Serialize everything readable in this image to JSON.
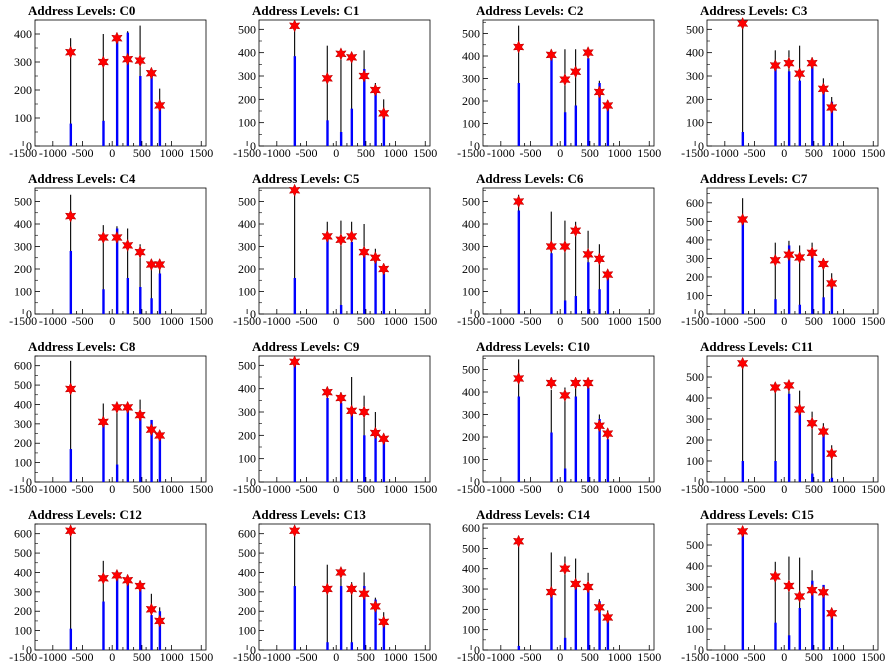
{
  "x_ticks": [
    -1500,
    -1000,
    -500,
    0,
    500,
    1000,
    1500
  ],
  "style": {
    "hist_color": "#000000",
    "fill_color": "#0000ff",
    "marker_color": "#ff0000",
    "axis_color": "#000000"
  },
  "chart_data": [
    {
      "type": "bar",
      "title": "Address Levels: C0",
      "ylim": [
        0,
        450
      ],
      "yticks": [
        0,
        100,
        200,
        300,
        400
      ],
      "x": [
        -700,
        -150,
        80,
        260,
        470,
        660,
        800
      ],
      "totals": [
        385,
        400,
        385,
        410,
        430,
        270,
        205
      ],
      "blue": [
        80,
        90,
        380,
        405,
        250,
        250,
        140
      ],
      "markers": [
        335,
        300,
        385,
        310,
        305,
        260,
        145
      ]
    },
    {
      "type": "bar",
      "title": "Address Levels: C1",
      "ylim": [
        0,
        540
      ],
      "yticks": [
        0,
        100,
        200,
        300,
        400,
        500
      ],
      "x": [
        -700,
        -150,
        80,
        260,
        470,
        660,
        800
      ],
      "totals": [
        520,
        430,
        410,
        385,
        410,
        270,
        200
      ],
      "blue": [
        385,
        110,
        60,
        160,
        330,
        250,
        145
      ],
      "markers": [
        515,
        290,
        395,
        380,
        300,
        240,
        140
      ]
    },
    {
      "type": "bar",
      "title": "Address Levels: C2",
      "ylim": [
        0,
        560
      ],
      "yticks": [
        0,
        100,
        200,
        300,
        400,
        500
      ],
      "x": [
        -700,
        -150,
        80,
        260,
        470,
        660,
        800
      ],
      "totals": [
        535,
        410,
        430,
        430,
        400,
        290,
        195
      ],
      "blue": [
        280,
        390,
        150,
        180,
        390,
        280,
        185
      ],
      "markers": [
        440,
        405,
        295,
        330,
        415,
        240,
        180
      ]
    },
    {
      "type": "bar",
      "title": "Address Levels: C3",
      "ylim": [
        0,
        540
      ],
      "yticks": [
        0,
        100,
        200,
        300,
        400,
        500
      ],
      "x": [
        -700,
        -150,
        80,
        260,
        470,
        660,
        800
      ],
      "totals": [
        525,
        410,
        410,
        430,
        380,
        290,
        210
      ],
      "blue": [
        60,
        350,
        320,
        280,
        360,
        250,
        190
      ],
      "markers": [
        525,
        345,
        355,
        310,
        355,
        245,
        165
      ]
    },
    {
      "type": "bar",
      "title": "Address Levels: C4",
      "ylim": [
        0,
        560
      ],
      "yticks": [
        0,
        100,
        200,
        300,
        400,
        500
      ],
      "x": [
        -700,
        -150,
        80,
        260,
        470,
        660,
        800
      ],
      "totals": [
        530,
        395,
        390,
        380,
        310,
        230,
        220
      ],
      "blue": [
        280,
        110,
        380,
        160,
        120,
        70,
        180
      ],
      "markers": [
        435,
        340,
        340,
        305,
        275,
        220,
        220
      ]
    },
    {
      "type": "bar",
      "title": "Address Levels: C5",
      "ylim": [
        0,
        560
      ],
      "yticks": [
        0,
        100,
        200,
        300,
        400,
        500
      ],
      "x": [
        -700,
        -150,
        80,
        260,
        470,
        660,
        800
      ],
      "totals": [
        560,
        410,
        415,
        410,
        400,
        290,
        200
      ],
      "blue": [
        160,
        330,
        40,
        320,
        270,
        260,
        180
      ],
      "markers": [
        550,
        345,
        330,
        345,
        275,
        250,
        200
      ]
    },
    {
      "type": "bar",
      "title": "Address Levels: C6",
      "ylim": [
        0,
        560
      ],
      "yticks": [
        0,
        100,
        200,
        300,
        400,
        500
      ],
      "x": [
        -700,
        -150,
        80,
        260,
        470,
        660,
        800
      ],
      "totals": [
        530,
        455,
        415,
        410,
        370,
        310,
        190
      ],
      "blue": [
        460,
        270,
        60,
        80,
        230,
        110,
        180
      ],
      "markers": [
        500,
        300,
        300,
        370,
        265,
        245,
        175
      ]
    },
    {
      "type": "bar",
      "title": "Address Levels: C7",
      "ylim": [
        0,
        680
      ],
      "yticks": [
        0,
        100,
        200,
        300,
        400,
        500,
        600
      ],
      "x": [
        -700,
        -150,
        80,
        260,
        470,
        660,
        800
      ],
      "totals": [
        625,
        385,
        395,
        370,
        385,
        300,
        220
      ],
      "blue": [
        515,
        80,
        370,
        50,
        330,
        90,
        150
      ],
      "markers": [
        510,
        290,
        320,
        305,
        330,
        270,
        165
      ]
    },
    {
      "type": "bar",
      "title": "Address Levels: C8",
      "ylim": [
        0,
        650
      ],
      "yticks": [
        0,
        100,
        200,
        300,
        400,
        500,
        600
      ],
      "x": [
        -700,
        -150,
        80,
        260,
        470,
        660,
        800
      ],
      "totals": [
        625,
        405,
        405,
        395,
        425,
        320,
        250
      ],
      "blue": [
        170,
        300,
        90,
        370,
        350,
        320,
        230
      ],
      "markers": [
        480,
        310,
        385,
        385,
        345,
        270,
        240
      ]
    },
    {
      "type": "bar",
      "title": "Address Levels: C9",
      "ylim": [
        0,
        540
      ],
      "yticks": [
        0,
        100,
        200,
        300,
        400,
        500
      ],
      "x": [
        -700,
        -150,
        80,
        260,
        470,
        660,
        800
      ],
      "totals": [
        520,
        395,
        385,
        450,
        370,
        300,
        195
      ],
      "blue": [
        510,
        360,
        340,
        310,
        200,
        210,
        170
      ],
      "markers": [
        515,
        385,
        360,
        305,
        300,
        210,
        185
      ]
    },
    {
      "type": "bar",
      "title": "Address Levels: C10",
      "ylim": [
        0,
        560
      ],
      "yticks": [
        0,
        100,
        200,
        300,
        400,
        500
      ],
      "x": [
        -700,
        -150,
        80,
        260,
        470,
        660,
        800
      ],
      "totals": [
        545,
        410,
        420,
        460,
        400,
        300,
        200
      ],
      "blue": [
        380,
        220,
        60,
        380,
        420,
        280,
        190
      ],
      "markers": [
        460,
        440,
        385,
        440,
        440,
        250,
        215
      ]
    },
    {
      "type": "bar",
      "title": "Address Levels: C11",
      "ylim": [
        0,
        600
      ],
      "yticks": [
        0,
        100,
        200,
        300,
        400,
        500
      ],
      "x": [
        -700,
        -150,
        80,
        260,
        470,
        660,
        800
      ],
      "totals": [
        570,
        430,
        445,
        435,
        335,
        280,
        175
      ],
      "blue": [
        100,
        100,
        420,
        330,
        40,
        260,
        20
      ],
      "markers": [
        565,
        450,
        460,
        345,
        280,
        240,
        135
      ]
    },
    {
      "type": "bar",
      "title": "Address Levels: C12",
      "ylim": [
        0,
        650
      ],
      "yticks": [
        0,
        100,
        200,
        300,
        400,
        500,
        600
      ],
      "x": [
        -700,
        -150,
        80,
        260,
        470,
        660,
        800
      ],
      "totals": [
        610,
        460,
        385,
        375,
        355,
        290,
        220
      ],
      "blue": [
        110,
        250,
        370,
        360,
        340,
        180,
        200
      ],
      "markers": [
        615,
        370,
        385,
        360,
        330,
        210,
        150
      ]
    },
    {
      "type": "bar",
      "title": "Address Levels: C13",
      "ylim": [
        0,
        650
      ],
      "yticks": [
        0,
        100,
        200,
        300,
        400,
        500,
        600
      ],
      "x": [
        -700,
        -150,
        80,
        260,
        470,
        660,
        800
      ],
      "totals": [
        630,
        440,
        415,
        350,
        400,
        270,
        195
      ],
      "blue": [
        330,
        40,
        330,
        40,
        330,
        260,
        130
      ],
      "markers": [
        615,
        315,
        400,
        315,
        290,
        225,
        145
      ]
    },
    {
      "type": "bar",
      "title": "Address Levels: C14",
      "ylim": [
        0,
        620
      ],
      "yticks": [
        0,
        100,
        200,
        300,
        400,
        500,
        600
      ],
      "x": [
        -700,
        -150,
        80,
        260,
        470,
        660,
        800
      ],
      "totals": [
        550,
        480,
        460,
        450,
        380,
        250,
        195
      ],
      "blue": [
        20,
        300,
        60,
        330,
        300,
        240,
        150
      ],
      "markers": [
        535,
        285,
        400,
        325,
        310,
        210,
        160
      ]
    },
    {
      "type": "bar",
      "title": "Address Levels: C15",
      "ylim": [
        0,
        600
      ],
      "yticks": [
        0,
        100,
        200,
        300,
        400,
        500
      ],
      "x": [
        -700,
        -150,
        80,
        260,
        470,
        660,
        800
      ],
      "totals": [
        580,
        420,
        445,
        440,
        380,
        300,
        190
      ],
      "blue": [
        560,
        130,
        70,
        200,
        330,
        310,
        160
      ],
      "markers": [
        565,
        350,
        305,
        255,
        285,
        275,
        175
      ]
    }
  ]
}
